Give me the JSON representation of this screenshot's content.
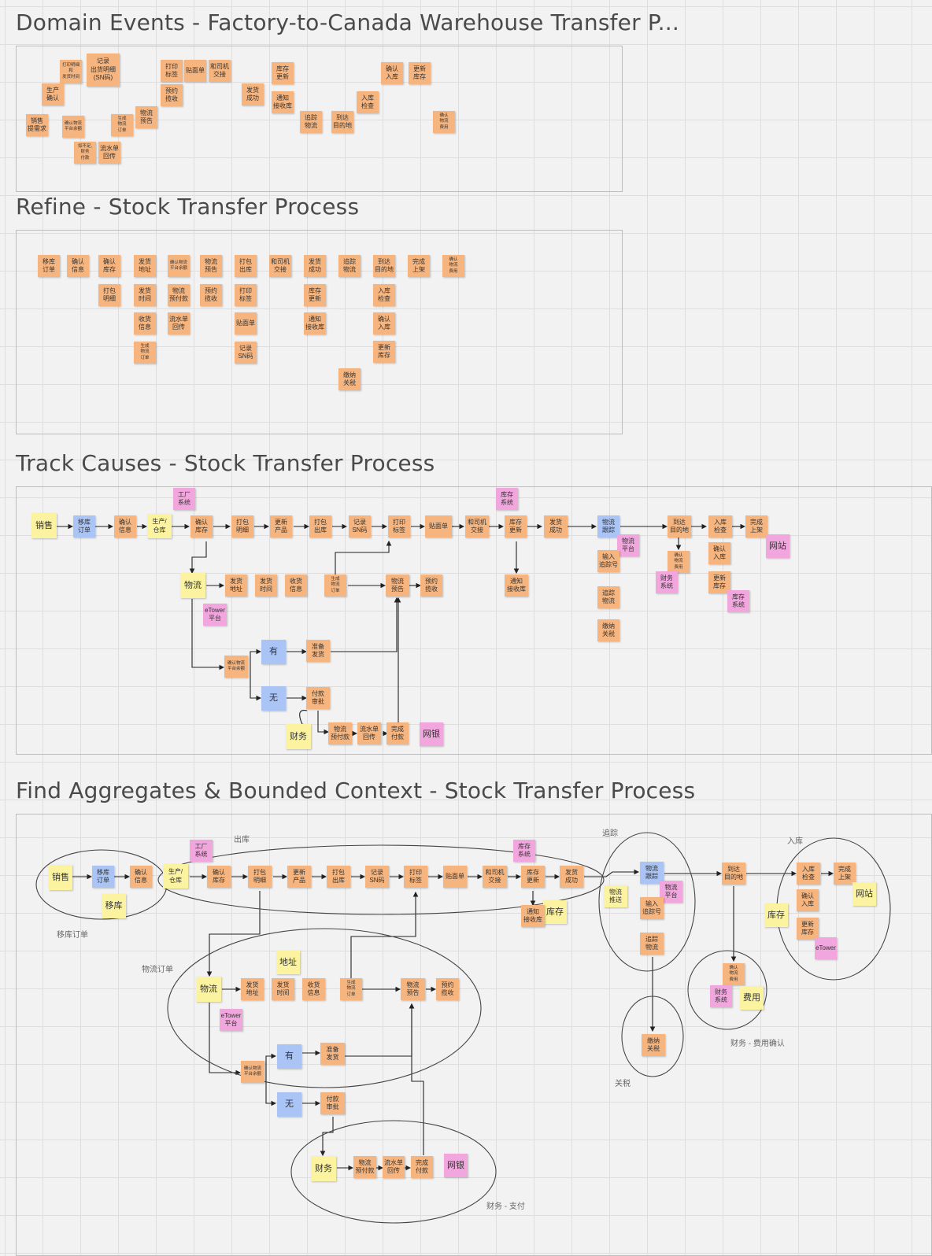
{
  "sections": [
    {
      "title": "Domain Events - Factory-to-Canada Warehouse Transfer P..."
    },
    {
      "title": "Refine - Stock Transfer Process"
    },
    {
      "title": "Track Causes - Stock Transfer Process"
    },
    {
      "title": "Find Aggregates & Bounded Context - Stock Transfer Process"
    }
  ],
  "domain_events": [
    {
      "text": "打印明细\n和\n发货时间",
      "c": "o"
    },
    {
      "text": "记录\n出货明细\n(SN码)",
      "c": "o"
    },
    {
      "text": "生产\n确认",
      "c": "o"
    },
    {
      "text": "打印\n标签",
      "c": "o"
    },
    {
      "text": "贴面单",
      "c": "o"
    },
    {
      "text": "和司机\n交接",
      "c": "o"
    },
    {
      "text": "预约\n揽收",
      "c": "o"
    },
    {
      "text": "库存\n更新",
      "c": "o"
    },
    {
      "text": "确认\n入库",
      "c": "o"
    },
    {
      "text": "更新\n库存",
      "c": "o"
    },
    {
      "text": "发货\n成功",
      "c": "o"
    },
    {
      "text": "通知\n接收库",
      "c": "o"
    },
    {
      "text": "入库\n检查",
      "c": "o"
    },
    {
      "text": "物流\n预告",
      "c": "o"
    },
    {
      "text": "销售\n提需求",
      "c": "o"
    },
    {
      "text": "确认物流\n平台余额",
      "c": "o"
    },
    {
      "text": "生成\n物流\n订单",
      "c": "o"
    },
    {
      "text": "追踪\n物流",
      "c": "o"
    },
    {
      "text": "到达\n目的地",
      "c": "o"
    },
    {
      "text": "确认\n物流\n费用",
      "c": "o"
    },
    {
      "text": "如不足,\n财务\n付款",
      "c": "o"
    },
    {
      "text": "流水单\n回传",
      "c": "o"
    }
  ],
  "refine": [
    {
      "text": "移库\n订单",
      "c": "o"
    },
    {
      "text": "确认\n信息",
      "c": "o"
    },
    {
      "text": "确认\n库存",
      "c": "o"
    },
    {
      "text": "发货\n地址",
      "c": "o"
    },
    {
      "text": "确认物流\n平台余额",
      "c": "o"
    },
    {
      "text": "物流\n预告",
      "c": "o"
    },
    {
      "text": "打包\n出库",
      "c": "o"
    },
    {
      "text": "和司机\n交接",
      "c": "o"
    },
    {
      "text": "发货\n成功",
      "c": "o"
    },
    {
      "text": "追踪\n物流",
      "c": "o"
    },
    {
      "text": "到达\n目的地",
      "c": "o"
    },
    {
      "text": "完成\n上架",
      "c": "o"
    },
    {
      "text": "确认\n物流\n费用",
      "c": "o"
    },
    {
      "text": "打包\n明细",
      "c": "o"
    },
    {
      "text": "发货\n时间",
      "c": "o"
    },
    {
      "text": "物流\n预付款",
      "c": "o"
    },
    {
      "text": "预约\n揽收",
      "c": "o"
    },
    {
      "text": "打印\n标签",
      "c": "o"
    },
    {
      "text": "库存\n更新",
      "c": "o"
    },
    {
      "text": "入库\n检查",
      "c": "o"
    },
    {
      "text": "收货\n信息",
      "c": "o"
    },
    {
      "text": "流水单\n回传",
      "c": "o"
    },
    {
      "text": "贴面单",
      "c": "o"
    },
    {
      "text": "通知\n接收库",
      "c": "o"
    },
    {
      "text": "确认\n入库",
      "c": "o"
    },
    {
      "text": "生成\n物流\n订单",
      "c": "o"
    },
    {
      "text": "记录\nSN码",
      "c": "o"
    },
    {
      "text": "更新\n库存",
      "c": "o"
    },
    {
      "text": "缴纳\n关税",
      "c": "o"
    }
  ],
  "track": [
    {
      "text": "工厂\n系统",
      "c": "p"
    },
    {
      "text": "库存\n系统",
      "c": "p"
    },
    {
      "text": "销售",
      "c": "y"
    },
    {
      "text": "移库\n订单",
      "c": "b"
    },
    {
      "text": "确认\n信息",
      "c": "o"
    },
    {
      "text": "生产/\n仓库",
      "c": "y"
    },
    {
      "text": "确认\n库存",
      "c": "o"
    },
    {
      "text": "打包\n明细",
      "c": "o"
    },
    {
      "text": "更新\n产品",
      "c": "o"
    },
    {
      "text": "打包\n出库",
      "c": "o"
    },
    {
      "text": "记录\nSN码",
      "c": "o"
    },
    {
      "text": "打印\n标签",
      "c": "o"
    },
    {
      "text": "贴面单",
      "c": "o"
    },
    {
      "text": "和司机\n交接",
      "c": "o"
    },
    {
      "text": "库存\n更新",
      "c": "o"
    },
    {
      "text": "发货\n成功",
      "c": "o"
    },
    {
      "text": "物流\n跟踪",
      "c": "b"
    },
    {
      "text": "物流\n平台",
      "c": "p"
    },
    {
      "text": "到达\n目的地",
      "c": "o"
    },
    {
      "text": "入库\n检查",
      "c": "o"
    },
    {
      "text": "完成\n上架",
      "c": "o"
    },
    {
      "text": "网站",
      "c": "p"
    },
    {
      "text": "输入\n追踪号",
      "c": "o"
    },
    {
      "text": "确认\n物流\n费用",
      "c": "o"
    },
    {
      "text": "确认\n入库",
      "c": "o"
    },
    {
      "text": "财务\n系统",
      "c": "p"
    },
    {
      "text": "更新\n库存",
      "c": "o"
    },
    {
      "text": "库存\n系统",
      "c": "p"
    },
    {
      "text": "追踪\n物流",
      "c": "o"
    },
    {
      "text": "缴纳\n关税",
      "c": "o"
    },
    {
      "text": "物流",
      "c": "y"
    },
    {
      "text": "发货\n地址",
      "c": "o"
    },
    {
      "text": "发货\n时间",
      "c": "o"
    },
    {
      "text": "收货\n信息",
      "c": "o"
    },
    {
      "text": "生成\n物流\n订单",
      "c": "o"
    },
    {
      "text": "物流\n预告",
      "c": "o"
    },
    {
      "text": "预约\n揽收",
      "c": "o"
    },
    {
      "text": "通知\n接收库",
      "c": "o"
    },
    {
      "text": "eTower\n平台",
      "c": "p"
    },
    {
      "text": "确认物流\n平台余额",
      "c": "o"
    },
    {
      "text": "有",
      "c": "b"
    },
    {
      "text": "准备\n发货",
      "c": "o"
    },
    {
      "text": "无",
      "c": "b"
    },
    {
      "text": "付款\n审批",
      "c": "o"
    },
    {
      "text": "财务",
      "c": "y"
    },
    {
      "text": "物流\n预付款",
      "c": "o"
    },
    {
      "text": "流水单\n回传",
      "c": "o"
    },
    {
      "text": "完成\n付款",
      "c": "o"
    },
    {
      "text": "网银",
      "c": "p"
    }
  ],
  "aggregates": [
    {
      "text": "工厂\n系统",
      "c": "p"
    },
    {
      "text": "库存\n系统",
      "c": "p"
    },
    {
      "text": "销售",
      "c": "y"
    },
    {
      "text": "移库\n订单",
      "c": "b"
    },
    {
      "text": "确认\n信息",
      "c": "o"
    },
    {
      "text": "移库",
      "c": "y"
    },
    {
      "text": "生产/\n仓库",
      "c": "y"
    },
    {
      "text": "确认\n库存",
      "c": "o"
    },
    {
      "text": "打包\n明细",
      "c": "o"
    },
    {
      "text": "更新\n产品",
      "c": "o"
    },
    {
      "text": "打包\n出库",
      "c": "o"
    },
    {
      "text": "记录\nSN码",
      "c": "o"
    },
    {
      "text": "打印\n标签",
      "c": "o"
    },
    {
      "text": "贴面单",
      "c": "o"
    },
    {
      "text": "和司机\n交接",
      "c": "o"
    },
    {
      "text": "库存\n更新",
      "c": "o"
    },
    {
      "text": "发货\n成功",
      "c": "o"
    },
    {
      "text": "库存",
      "c": "y"
    },
    {
      "text": "通知\n接收库",
      "c": "o"
    },
    {
      "text": "物流\n跟踪",
      "c": "b"
    },
    {
      "text": "物流\n平台",
      "c": "p"
    },
    {
      "text": "物流\n推送",
      "c": "y"
    },
    {
      "text": "输入\n追踪号",
      "c": "o"
    },
    {
      "text": "追踪\n物流",
      "c": "o"
    },
    {
      "text": "到达\n目的地",
      "c": "o"
    },
    {
      "text": "入库\n检查",
      "c": "o"
    },
    {
      "text": "完成\n上架",
      "c": "o"
    },
    {
      "text": "网站",
      "c": "y"
    },
    {
      "text": "确认\n入库",
      "c": "o"
    },
    {
      "text": "库存",
      "c": "y"
    },
    {
      "text": "更新\n库存",
      "c": "o"
    },
    {
      "text": "eTower",
      "c": "p"
    },
    {
      "text": "确认\n物流\n费用",
      "c": "o"
    },
    {
      "text": "财务\n系统",
      "c": "p"
    },
    {
      "text": "费用",
      "c": "y"
    },
    {
      "text": "缴纳\n关税",
      "c": "o"
    },
    {
      "text": "地址",
      "c": "y"
    },
    {
      "text": "物流",
      "c": "y"
    },
    {
      "text": "发货\n地址",
      "c": "o"
    },
    {
      "text": "发货\n时间",
      "c": "o"
    },
    {
      "text": "收货\n信息",
      "c": "o"
    },
    {
      "text": "生成\n物流\n订单",
      "c": "o"
    },
    {
      "text": "物流\n预告",
      "c": "o"
    },
    {
      "text": "预约\n揽收",
      "c": "o"
    },
    {
      "text": "eTower\n平台",
      "c": "p"
    },
    {
      "text": "确认物流\n平台余额",
      "c": "o"
    },
    {
      "text": "有",
      "c": "b"
    },
    {
      "text": "准备\n发货",
      "c": "o"
    },
    {
      "text": "无",
      "c": "b"
    },
    {
      "text": "付款\n审批",
      "c": "o"
    },
    {
      "text": "财务",
      "c": "y"
    },
    {
      "text": "物流\n预付款",
      "c": "o"
    },
    {
      "text": "流水单\n回传",
      "c": "o"
    },
    {
      "text": "完成\n付款",
      "c": "o"
    },
    {
      "text": "网银",
      "c": "p"
    }
  ],
  "context_labels": [
    {
      "text": "出库"
    },
    {
      "text": "追踪"
    },
    {
      "text": "入库"
    },
    {
      "text": "移库订单"
    },
    {
      "text": "物流订单"
    },
    {
      "text": "财务 - 费用确认"
    },
    {
      "text": "关税"
    },
    {
      "text": "财务 - 支付"
    }
  ]
}
